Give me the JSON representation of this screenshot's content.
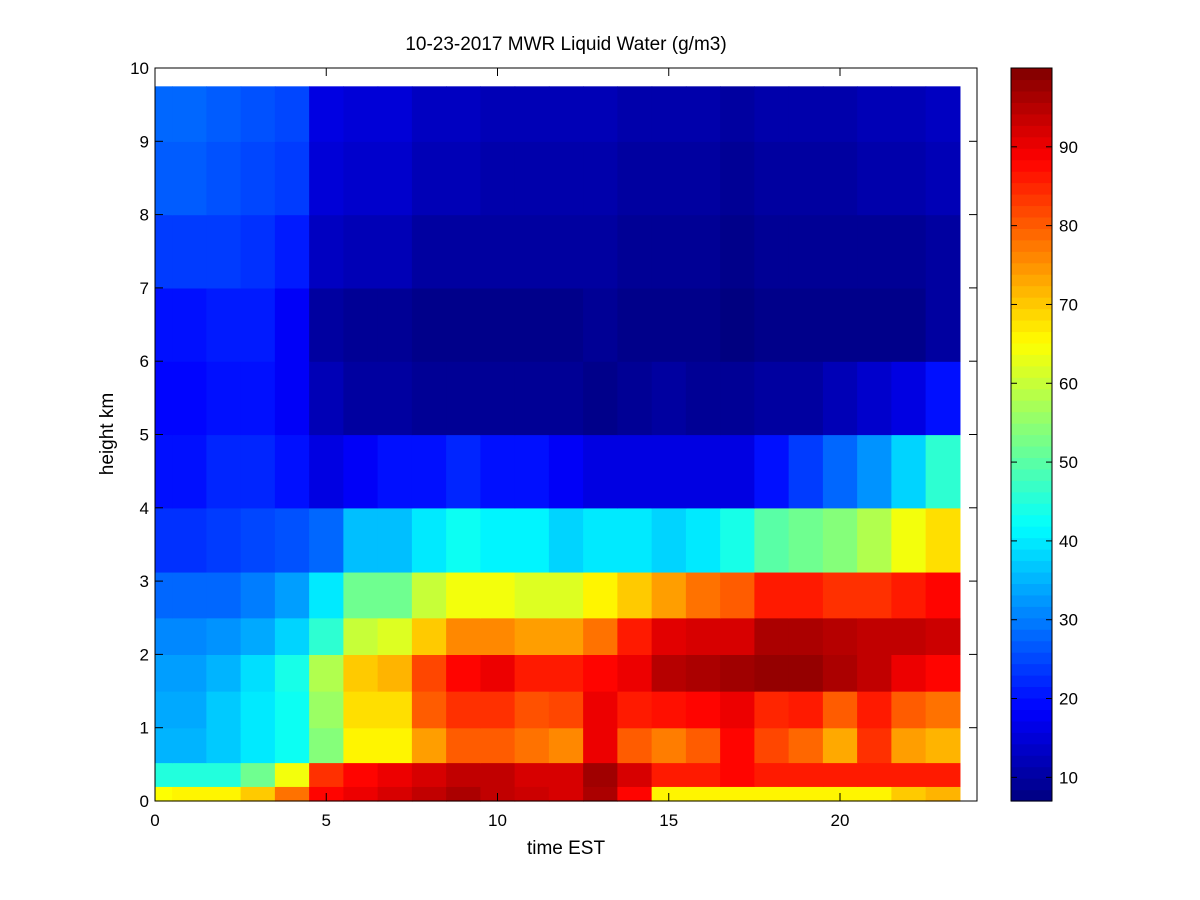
{
  "chart_data": {
    "type": "heatmap",
    "title": "10-23-2017 MWR Liquid Water (g/m3)",
    "xlabel": "time EST",
    "ylabel": "height km",
    "xlim": [
      0,
      24
    ],
    "ylim": [
      0,
      10
    ],
    "x_ticks": [
      "0",
      "5",
      "10",
      "15",
      "20"
    ],
    "y_ticks": [
      "0",
      "1",
      "2",
      "3",
      "4",
      "5",
      "6",
      "7",
      "8",
      "9",
      "10"
    ],
    "x": [
      0,
      1,
      2,
      3,
      4,
      5,
      6,
      7,
      8,
      9,
      10,
      11,
      12,
      13,
      14,
      15,
      16,
      17,
      18,
      19,
      20,
      21,
      22,
      23
    ],
    "y": [
      0.1,
      0.3,
      0.75,
      1.25,
      1.75,
      2.25,
      2.75,
      3.5,
      4.5,
      5.5,
      6.5,
      7.5,
      8.5,
      9.5
    ],
    "y_max": 9.75,
    "z": [
      [
        65,
        66,
        66,
        70,
        78,
        88,
        90,
        92,
        94,
        96,
        94,
        93,
        92,
        96,
        88,
        66,
        66,
        66,
        66,
        66,
        66,
        66,
        70,
        72
      ],
      [
        45,
        45,
        45,
        52,
        64,
        84,
        88,
        90,
        92,
        94,
        94,
        92,
        92,
        97,
        92,
        86,
        86,
        88,
        86,
        86,
        86,
        86,
        86,
        86
      ],
      [
        35,
        35,
        37,
        40,
        43,
        54,
        66,
        66,
        74,
        80,
        80,
        78,
        76,
        90,
        80,
        77,
        80,
        88,
        82,
        79,
        73,
        84,
        74,
        72
      ],
      [
        34,
        34,
        37,
        40,
        43,
        56,
        68,
        68,
        80,
        84,
        84,
        81,
        82,
        90,
        86,
        87,
        88,
        90,
        85,
        86,
        80,
        86,
        80,
        78
      ],
      [
        33,
        33,
        35,
        39,
        44,
        58,
        70,
        72,
        82,
        88,
        90,
        86,
        86,
        88,
        90,
        95,
        96,
        97,
        98,
        98,
        96,
        94,
        90,
        88
      ],
      [
        31,
        31,
        32,
        34,
        38,
        46,
        60,
        62,
        70,
        76,
        76,
        74,
        74,
        78,
        86,
        91,
        92,
        92,
        96,
        96,
        95,
        94,
        94,
        93
      ],
      [
        28,
        28,
        28,
        30,
        33,
        40,
        52,
        52,
        60,
        64,
        64,
        62,
        62,
        66,
        70,
        74,
        78,
        80,
        86,
        86,
        84,
        84,
        86,
        88
      ],
      [
        23,
        23,
        24,
        25,
        26,
        28,
        36,
        36,
        40,
        43,
        41,
        41,
        38,
        40,
        40,
        38,
        40,
        44,
        50,
        52,
        54,
        58,
        64,
        68
      ],
      [
        20,
        20,
        22,
        22,
        20,
        16,
        18,
        20,
        20,
        22,
        20,
        20,
        18,
        16,
        16,
        16,
        16,
        16,
        20,
        24,
        28,
        32,
        38,
        46
      ],
      [
        19,
        19,
        20,
        20,
        18,
        12,
        10,
        10,
        9,
        9,
        9,
        9,
        9,
        8,
        9,
        10,
        9,
        9,
        10,
        10,
        12,
        14,
        16,
        20
      ],
      [
        20,
        20,
        21,
        21,
        18,
        10,
        9,
        9,
        8,
        8,
        8,
        8,
        8,
        9,
        8,
        8,
        8,
        7,
        8,
        8,
        8,
        8,
        8,
        10
      ],
      [
        24,
        24,
        24,
        23,
        21,
        13,
        12,
        12,
        10,
        10,
        10,
        10,
        10,
        10,
        9,
        9,
        9,
        8,
        9,
        9,
        9,
        9,
        9,
        10
      ],
      [
        27,
        27,
        26,
        25,
        24,
        15,
        14,
        14,
        12,
        12,
        11,
        11,
        11,
        11,
        10,
        10,
        10,
        9,
        10,
        10,
        10,
        11,
        11,
        12
      ],
      [
        28,
        28,
        27,
        26,
        25,
        16,
        15,
        15,
        13,
        13,
        12,
        12,
        12,
        12,
        11,
        11,
        11,
        10,
        11,
        11,
        11,
        12,
        12,
        13
      ]
    ],
    "colorbar": {
      "colormap": "jet",
      "min": 7,
      "max": 100,
      "ticks": [
        10,
        20,
        30,
        40,
        50,
        60,
        70,
        80,
        90
      ]
    }
  }
}
